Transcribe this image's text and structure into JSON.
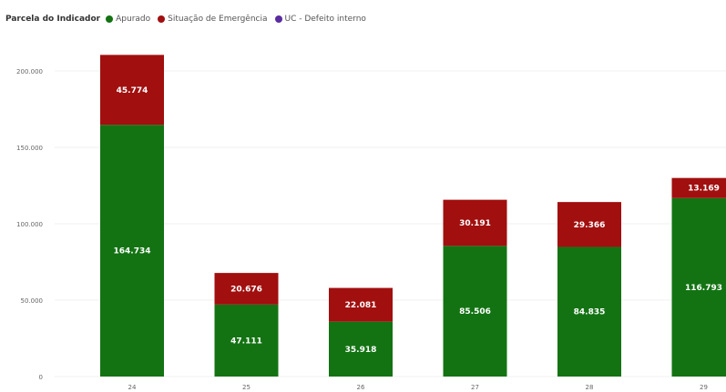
{
  "legend": {
    "title": "Parcela do Indicador",
    "items": [
      {
        "label": "Apurado",
        "color": "#137313"
      },
      {
        "label": "Situação de Emergência",
        "color": "#a10f0f"
      },
      {
        "label": "UC - Defeito interno",
        "color": "#5a2ca0"
      }
    ]
  },
  "chart_data": {
    "type": "bar",
    "stacked": true,
    "categories": [
      "24",
      "25",
      "26",
      "27",
      "28",
      "29"
    ],
    "series": [
      {
        "name": "Apurado",
        "color": "#137313",
        "values": [
          164734,
          47111,
          35918,
          85506,
          84835,
          116793
        ],
        "labels": [
          "164.734",
          "47.111",
          "35.918",
          "85.506",
          "84.835",
          "116.793"
        ]
      },
      {
        "name": "Situação de Emergência",
        "color": "#a10f0f",
        "values": [
          45774,
          20676,
          22081,
          30191,
          29366,
          13169
        ],
        "labels": [
          "45.774",
          "20.676",
          "22.081",
          "30.191",
          "29.366",
          "13.169"
        ]
      },
      {
        "name": "UC - Defeito interno",
        "color": "#5a2ca0",
        "values": [
          0,
          0,
          0,
          0,
          0,
          0
        ],
        "labels": [
          "",
          "",
          "",
          "",
          "",
          ""
        ]
      }
    ],
    "ylim": [
      0,
      200000
    ],
    "yticks": [
      0,
      50000,
      100000,
      150000,
      200000
    ],
    "yticklabels": [
      "0",
      "50.000",
      "100.000",
      "150.000",
      "200.000"
    ],
    "grid": true,
    "legend_position": "top-left"
  }
}
